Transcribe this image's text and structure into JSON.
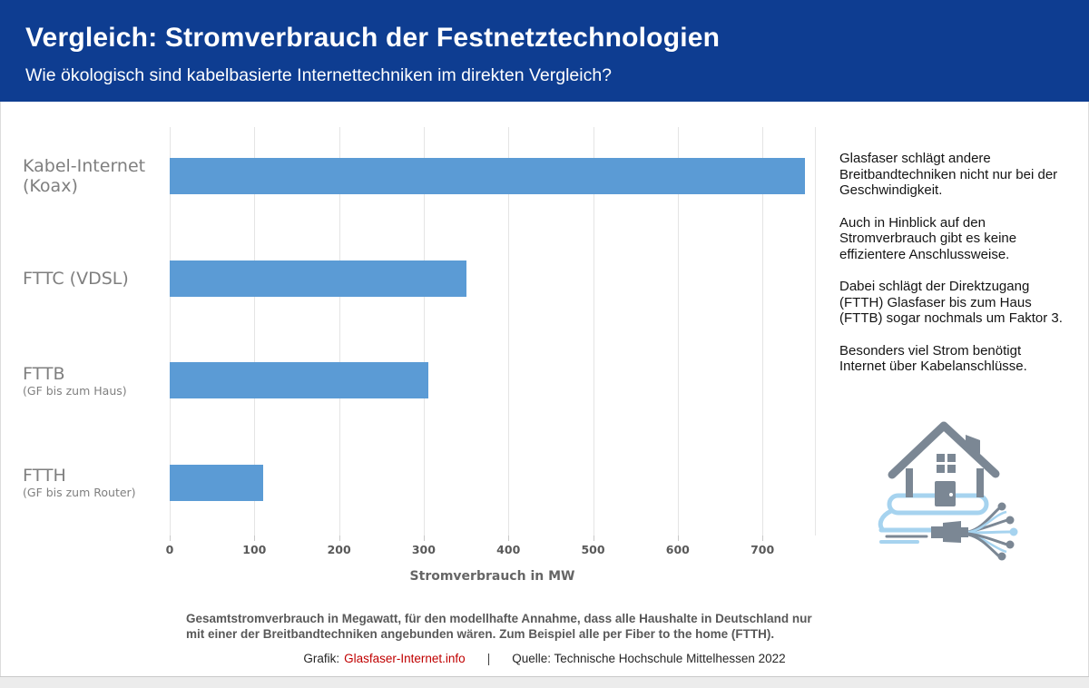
{
  "header": {
    "title": "Vergleich: Stromverbrauch der Festnetztechnologien",
    "subtitle": "Wie ökologisch sind kabelbasierte Internettechniken im direkten Vergleich?"
  },
  "chart_data": {
    "type": "bar",
    "orientation": "horizontal",
    "categories": [
      "Kabel-Internet (Koax)",
      "FTTC (VDSL)",
      "FTTB (GF bis zum Haus)",
      "FTTH (GF bis zum Router)"
    ],
    "category_labels": [
      {
        "main": "Kabel-Internet",
        "sub": "(Koax)",
        "sub_small": false
      },
      {
        "main": "FTTC (VDSL)",
        "sub": "",
        "sub_small": false
      },
      {
        "main": "FTTB",
        "sub": "(GF bis zum Haus)",
        "sub_small": true
      },
      {
        "main": "FTTH",
        "sub": "(GF bis zum Router)",
        "sub_small": true
      }
    ],
    "values": [
      750,
      350,
      305,
      110
    ],
    "xlabel": "Stromverbrauch in MW",
    "xticks": [
      0,
      100,
      200,
      300,
      400,
      500,
      600,
      700
    ],
    "xlim": [
      0,
      762
    ],
    "grid": true,
    "legend": "none",
    "bar_color": "#5b9bd5"
  },
  "side_text": {
    "paragraphs": [
      "Glasfaser schlägt andere Breitbandtechniken nicht nur bei der Geschwindigkeit.",
      "Auch in Hinblick auf den Stromverbrauch gibt es keine effizientere Anschlussweise.",
      "Dabei schlägt der Direktzugang (FTTH) Glasfaser bis zum Haus (FTTB) sogar nochmals um Faktor 3.",
      "Besonders viel Strom benötigt Internet über Kabelanschlüsse."
    ]
  },
  "icon": "house-with-fiber-cable-icon",
  "footnote": {
    "lines": [
      "Gesamtstromverbrauch in Megawatt, für den modellhafte Annahme, dass alle Haushalte in Deutschland nur",
      "mit einer der Breitbandtechniken angebunden wären. Zum Beispiel alle per Fiber to the home (FTTH)."
    ]
  },
  "credit": {
    "grafik_label": "Grafik:",
    "grafik_link": "Glasfaser-Internet.info",
    "separator": "|",
    "quelle": "Quelle: Technische Hochschule Mittelhessen 2022"
  },
  "colors": {
    "header_bg": "#0e3d91",
    "bar": "#5b9bd5",
    "gridline": "#e4e4e4",
    "category_label": "#7f7f7f",
    "tick_label": "#595959",
    "footnote": "#595959",
    "link_red": "#c00000",
    "icon_gray": "#7b8794",
    "icon_blue": "#a6d3ef"
  }
}
